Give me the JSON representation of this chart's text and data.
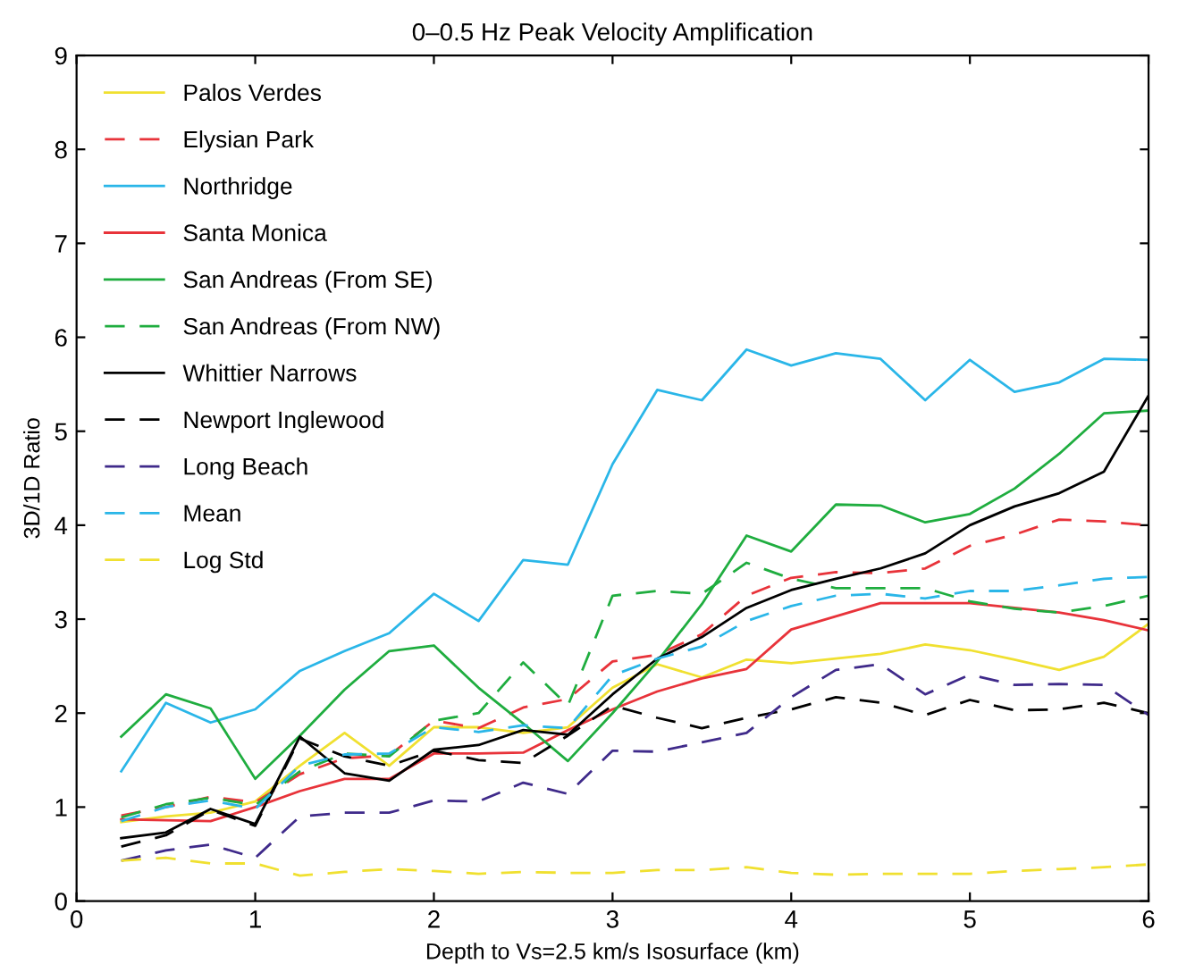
{
  "chart_data": {
    "type": "line",
    "title": "0–0.5 Hz Peak Velocity Amplification",
    "xlabel": "Depth to Vs=2.5 km/s Isosurface (km)",
    "ylabel": "3D/1D Ratio",
    "x": [
      0.25,
      0.5,
      0.75,
      1.0,
      1.25,
      1.5,
      1.75,
      2.0,
      2.25,
      2.5,
      2.75,
      3.0,
      3.25,
      3.5,
      3.75,
      4.0,
      4.25,
      4.5,
      4.75,
      5.0,
      5.25,
      5.5,
      5.75,
      6.0
    ],
    "xlim": [
      0,
      6
    ],
    "ylim": [
      0,
      9
    ],
    "xticks": [
      0,
      1,
      2,
      3,
      4,
      5,
      6
    ],
    "yticks": [
      0,
      1,
      2,
      3,
      4,
      5,
      6,
      7,
      8,
      9
    ],
    "grid": false,
    "legend": "top left",
    "series": [
      {
        "name": "Palos Verdes",
        "color": "#f0e030",
        "line_style": "solid",
        "values": [
          0.84,
          0.9,
          0.94,
          1.06,
          1.44,
          1.79,
          1.44,
          1.85,
          1.85,
          1.79,
          1.85,
          2.27,
          2.52,
          2.38,
          2.57,
          2.53,
          2.58,
          2.63,
          2.73,
          2.67,
          2.57,
          2.46,
          2.6,
          2.95
        ]
      },
      {
        "name": "Elysian Park",
        "color": "#e8333a",
        "line_style": "dashed",
        "values": [
          0.91,
          1.0,
          1.11,
          1.05,
          1.35,
          1.52,
          1.55,
          1.92,
          1.84,
          2.06,
          2.15,
          2.55,
          2.62,
          2.84,
          3.25,
          3.44,
          3.5,
          3.49,
          3.54,
          3.78,
          3.9,
          4.06,
          4.04,
          4.0
        ]
      },
      {
        "name": "Northridge",
        "color": "#2ab6e8",
        "line_style": "solid",
        "values": [
          1.38,
          2.11,
          1.9,
          2.04,
          2.45,
          2.66,
          2.85,
          3.27,
          2.98,
          3.63,
          3.58,
          4.65,
          5.44,
          5.33,
          5.87,
          5.7,
          5.83,
          5.77,
          5.33,
          5.76,
          5.42,
          5.52,
          5.77,
          5.76
        ]
      },
      {
        "name": "Santa Monica",
        "color": "#e8333a",
        "line_style": "solid",
        "values": [
          0.87,
          0.86,
          0.85,
          1.0,
          1.17,
          1.3,
          1.3,
          1.57,
          1.57,
          1.58,
          1.82,
          2.04,
          2.23,
          2.37,
          2.47,
          2.89,
          3.03,
          3.17,
          3.17,
          3.17,
          3.12,
          3.07,
          2.99,
          2.88
        ]
      },
      {
        "name": "San Andreas (From SE)",
        "color": "#1fad3f",
        "line_style": "solid",
        "values": [
          1.75,
          2.2,
          2.05,
          1.3,
          1.76,
          2.25,
          2.66,
          2.72,
          2.27,
          1.89,
          1.49,
          2.0,
          2.55,
          3.16,
          3.89,
          3.72,
          4.22,
          4.21,
          4.03,
          4.12,
          4.39,
          4.76,
          5.19,
          5.22
        ]
      },
      {
        "name": "San Andreas (From NW)",
        "color": "#1fad3f",
        "line_style": "dashed",
        "values": [
          0.89,
          1.03,
          1.1,
          1.02,
          1.38,
          1.57,
          1.54,
          1.92,
          2.0,
          2.54,
          2.08,
          3.25,
          3.3,
          3.27,
          3.6,
          3.43,
          3.33,
          3.33,
          3.33,
          3.19,
          3.11,
          3.07,
          3.14,
          3.25
        ]
      },
      {
        "name": "Whittier Narrows",
        "color": "#000000",
        "line_style": "solid",
        "values": [
          0.67,
          0.73,
          0.98,
          0.82,
          1.75,
          1.36,
          1.28,
          1.61,
          1.66,
          1.82,
          1.77,
          2.2,
          2.58,
          2.81,
          3.12,
          3.31,
          3.43,
          3.54,
          3.7,
          4.0,
          4.2,
          4.34,
          4.57,
          5.38
        ]
      },
      {
        "name": "Newport Inglewood",
        "color": "#000000",
        "line_style": "dashed",
        "values": [
          0.58,
          0.7,
          0.97,
          0.8,
          1.73,
          1.54,
          1.44,
          1.6,
          1.5,
          1.47,
          1.76,
          2.08,
          1.95,
          1.84,
          1.95,
          2.04,
          2.17,
          2.11,
          1.98,
          2.14,
          2.03,
          2.04,
          2.11,
          2.0
        ]
      },
      {
        "name": "Long Beach",
        "color": "#3f2a8a",
        "line_style": "dashed",
        "values": [
          0.43,
          0.54,
          0.6,
          0.46,
          0.9,
          0.94,
          0.94,
          1.07,
          1.06,
          1.26,
          1.14,
          1.6,
          1.59,
          1.69,
          1.79,
          2.17,
          2.46,
          2.52,
          2.2,
          2.41,
          2.3,
          2.31,
          2.3,
          1.98
        ]
      },
      {
        "name": "Mean",
        "color": "#2ab6e8",
        "line_style": "dashed",
        "values": [
          0.85,
          1.0,
          1.07,
          0.98,
          1.44,
          1.56,
          1.57,
          1.85,
          1.8,
          1.87,
          1.84,
          2.4,
          2.58,
          2.71,
          2.98,
          3.14,
          3.25,
          3.27,
          3.22,
          3.3,
          3.3,
          3.36,
          3.43,
          3.45
        ]
      },
      {
        "name": "Log Std",
        "color": "#f0e030",
        "line_style": "dashed",
        "values": [
          0.43,
          0.46,
          0.4,
          0.4,
          0.27,
          0.31,
          0.34,
          0.32,
          0.29,
          0.31,
          0.3,
          0.3,
          0.33,
          0.33,
          0.36,
          0.3,
          0.28,
          0.29,
          0.29,
          0.29,
          0.32,
          0.34,
          0.36,
          0.39
        ]
      }
    ]
  }
}
